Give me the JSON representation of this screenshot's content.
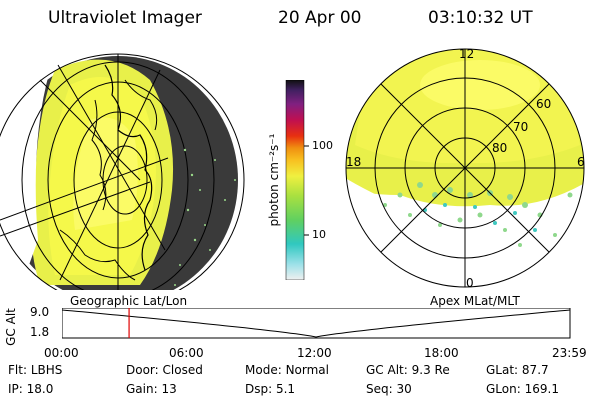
{
  "header": {
    "title": "Ultraviolet Imager",
    "date": "20 Apr 00",
    "time": "03:10:32 UT"
  },
  "colorbar": {
    "unit_label": "photon cm⁻²s⁻¹",
    "ticks": [
      "100",
      "10"
    ]
  },
  "polar_plot": {
    "clock_labels": {
      "top": "12",
      "left": "18",
      "right": "6",
      "bottom": "0"
    },
    "lat_labels": [
      "60",
      "70",
      "80"
    ]
  },
  "timeline": {
    "left_caption": "Geographic Lat/Lon",
    "right_caption": "Apex MLat/MLT",
    "axis_label": "GC Alt",
    "y_ticks": [
      "9.0",
      "1.8"
    ],
    "x_ticks": [
      "00:00",
      "06:00",
      "12:00",
      "18:00",
      "23:59"
    ],
    "marker_time": "03:10",
    "marker_color": "#e00000",
    "curve_color": "#000000"
  },
  "status": {
    "row1": [
      {
        "label": "Flt:",
        "value": "LBHS"
      },
      {
        "label": "Door:",
        "value": "Closed"
      },
      {
        "label": "Mode:",
        "value": "Normal"
      },
      {
        "label": "GC Alt:",
        "value": "9.3 Re"
      },
      {
        "label": "GLat:",
        "value": "87.7"
      }
    ],
    "row2": [
      {
        "label": "IP:",
        "value": "18.0"
      },
      {
        "label": "Gain:",
        "value": "13"
      },
      {
        "label": "Dsp:",
        "value": "5.1"
      },
      {
        "label": "Seq:",
        "value": "30"
      },
      {
        "label": "GLon:",
        "value": "169.1"
      }
    ]
  }
}
